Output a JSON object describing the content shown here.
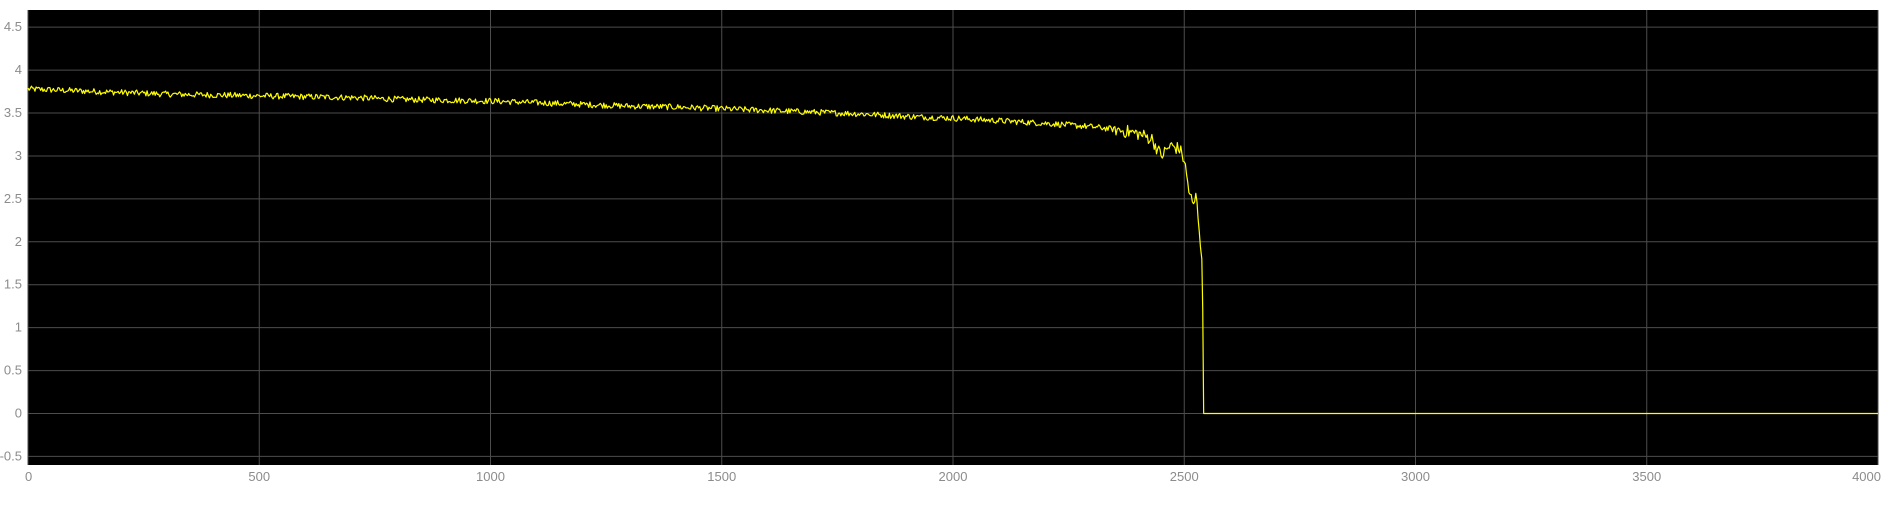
{
  "chart_data": {
    "type": "line",
    "title": "",
    "xlabel": "",
    "ylabel": "",
    "xlim": [
      0,
      4000
    ],
    "ylim": [
      -0.6,
      4.7
    ],
    "grid": true,
    "x_ticks": [
      0,
      500,
      1000,
      1500,
      2000,
      2500,
      3000,
      3500,
      4000
    ],
    "y_ticks": [
      -0.5,
      0,
      0.5,
      1,
      1.5,
      2,
      2.5,
      3,
      3.5,
      4,
      4.5
    ],
    "x_tick_labels": [
      "0",
      "500",
      "1000",
      "1500",
      "2000",
      "2500",
      "3000",
      "3500",
      "4000"
    ],
    "y_tick_labels": [
      "-0.5",
      "0",
      "0.5",
      "1",
      "1.5",
      "2",
      "2.5",
      "3",
      "3.5",
      "4",
      "4.5"
    ],
    "background_color": "#000000",
    "grid_color": "#4d4d4d",
    "series": [
      {
        "color": "#ffff00",
        "x": [
          0,
          100,
          200,
          300,
          400,
          500,
          600,
          700,
          800,
          900,
          1000,
          1100,
          1200,
          1300,
          1400,
          1500,
          1600,
          1700,
          1800,
          1900,
          2000,
          2100,
          2200,
          2300,
          2350,
          2400,
          2430,
          2450,
          2470,
          2490,
          2500,
          2510,
          2520,
          2525,
          2530,
          2535,
          2538,
          2540,
          2541,
          2542,
          2545,
          2550,
          3000,
          3500,
          4000
        ],
        "values": [
          3.78,
          3.76,
          3.74,
          3.72,
          3.71,
          3.7,
          3.69,
          3.68,
          3.66,
          3.65,
          3.64,
          3.62,
          3.6,
          3.58,
          3.57,
          3.55,
          3.53,
          3.51,
          3.49,
          3.46,
          3.44,
          3.41,
          3.38,
          3.34,
          3.31,
          3.26,
          3.2,
          3.0,
          3.12,
          3.08,
          2.95,
          2.6,
          2.4,
          2.55,
          2.3,
          2.0,
          1.8,
          1.2,
          0.6,
          0.0,
          0.0,
          0.0,
          0.0,
          0.0,
          0.0
        ],
        "noise_amplitude": 0.035
      }
    ]
  }
}
